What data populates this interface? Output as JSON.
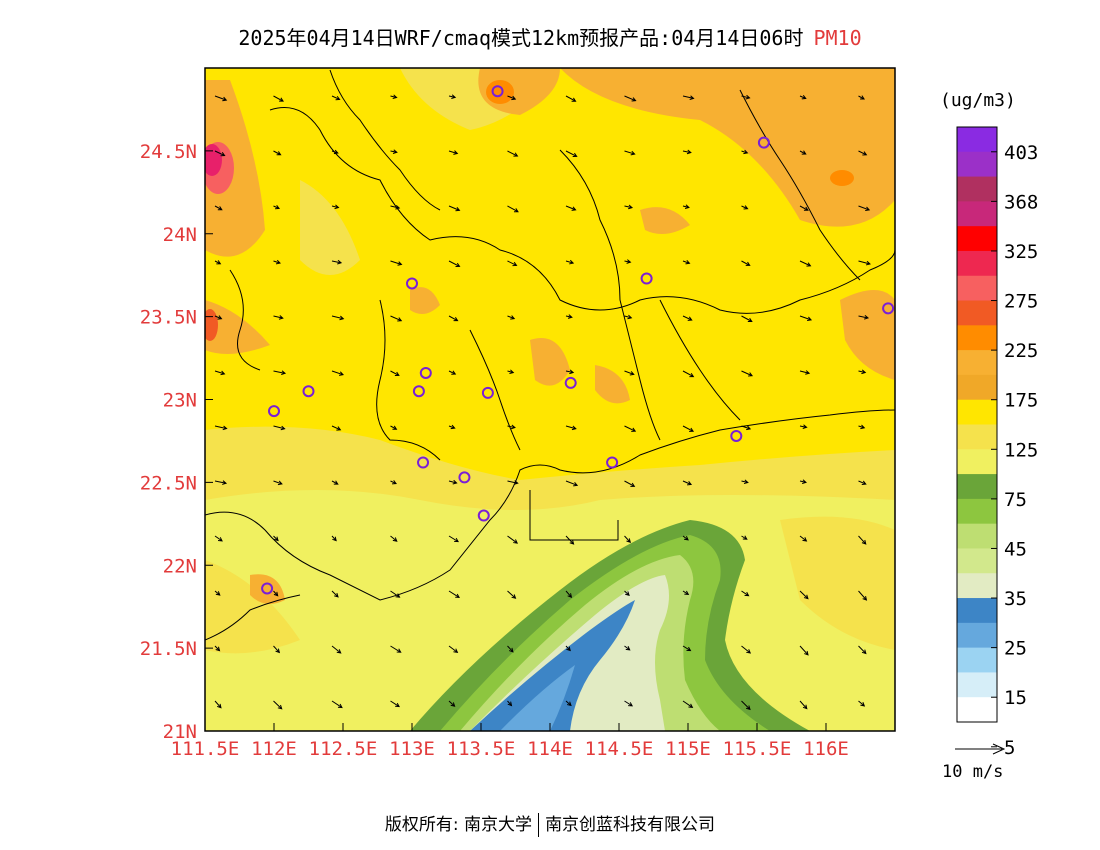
{
  "title": {
    "main": "2025年04月14日WRF/cmaq模式12km预报产品:04月14日06时",
    "variable": "PM10"
  },
  "map": {
    "lon_range": [
      111.5,
      116.5
    ],
    "lat_range": [
      21.0,
      25.0
    ],
    "x_tick_labels": [
      "111.5E",
      "112E",
      "112.5E",
      "113E",
      "113.5E",
      "114E",
      "114.5E",
      "115E",
      "115.5E",
      "116E"
    ],
    "y_tick_labels": [
      "21N",
      "21.5N",
      "22N",
      "22.5N",
      "23N",
      "23.5N",
      "24N",
      "24.5N"
    ],
    "stations": [
      [
        113.62,
        24.86
      ],
      [
        115.55,
        24.55
      ],
      [
        113.0,
        23.7
      ],
      [
        114.7,
        23.73
      ],
      [
        116.45,
        23.55
      ],
      [
        113.1,
        23.16
      ],
      [
        113.05,
        23.05
      ],
      [
        112.25,
        23.05
      ],
      [
        112.0,
        22.93
      ],
      [
        113.55,
        23.04
      ],
      [
        114.15,
        23.1
      ],
      [
        114.45,
        22.62
      ],
      [
        113.08,
        22.62
      ],
      [
        113.38,
        22.53
      ],
      [
        113.52,
        22.3
      ],
      [
        111.95,
        21.86
      ],
      [
        115.35,
        22.78
      ]
    ]
  },
  "legend": {
    "unit": "(ug/m3)",
    "labels": [
      "403",
      "368",
      "325",
      "275",
      "225",
      "175",
      "125",
      "75",
      "45",
      "35",
      "25",
      "15",
      "5"
    ],
    "colors": [
      "#8a2be2",
      "#9b30c8",
      "#b03060",
      "#c8287a",
      "#ff0000",
      "#ee2850",
      "#f76060",
      "#f15a24",
      "#ff8c00",
      "#f7b032",
      "#f0a828",
      "#ffe600",
      "#f5e24c",
      "#f0f060",
      "#6aa539",
      "#8dc63f",
      "#bede72",
      "#d2e88c",
      "#e2ebc3",
      "#3d85c6",
      "#65a8dd",
      "#9bd3f2",
      "#d6eef8",
      "#ffffff"
    ],
    "wind_reference": "10 m/s"
  },
  "footer": {
    "copyright": "版权所有: 南京大学",
    "company": "南京创蓝科技有限公司"
  }
}
